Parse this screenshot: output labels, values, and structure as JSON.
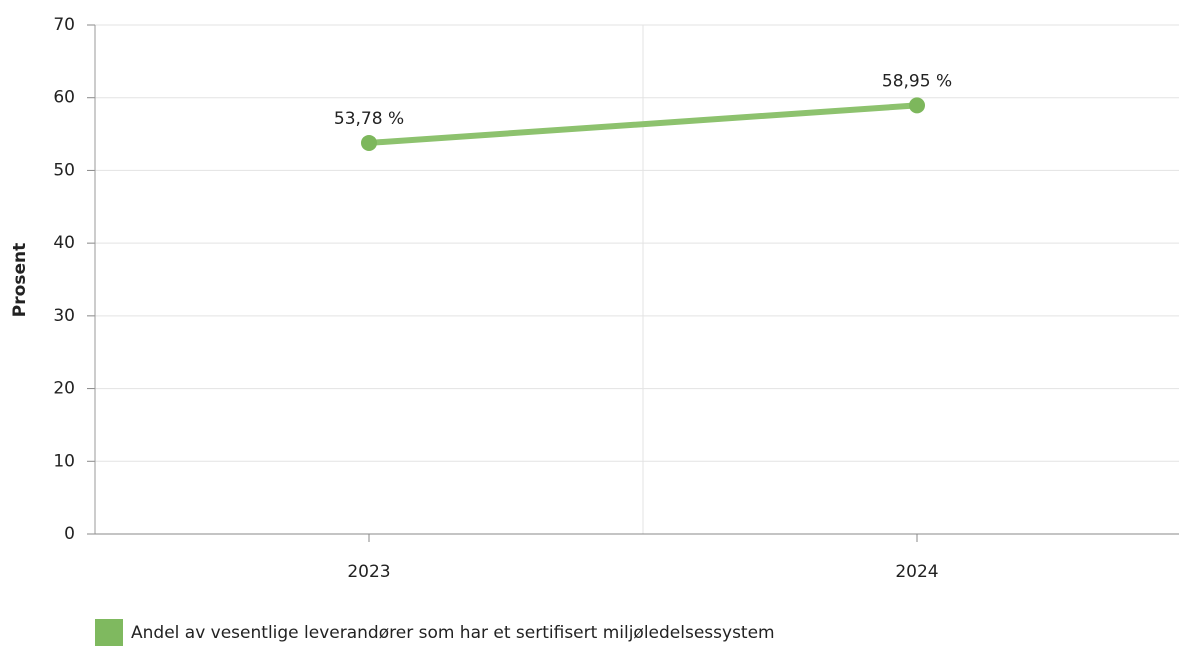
{
  "chart_data": {
    "type": "line",
    "y_axis_label": "Prosent",
    "categories": [
      "2023",
      "2024"
    ],
    "series": [
      {
        "name": "Andel av vesentlige leverandører som har et sertifisert miljøledelsessystem",
        "color": "#8dc26e",
        "values": [
          53.78,
          58.95
        ],
        "value_labels": [
          "53,78 %",
          "58,95 %"
        ]
      }
    ],
    "ylim": [
      0,
      70
    ],
    "yticks": [
      0,
      10,
      20,
      30,
      40,
      50,
      60,
      70
    ],
    "grid": true,
    "legend": "bottom-left"
  }
}
